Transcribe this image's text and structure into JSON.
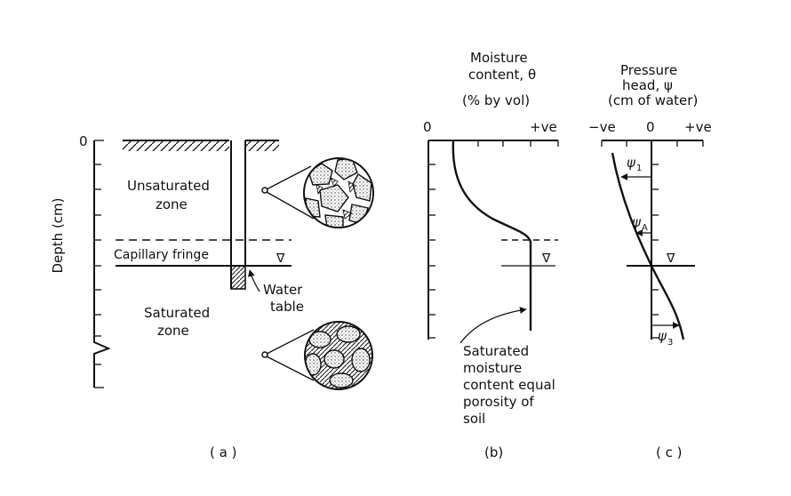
{
  "panel_a": {
    "depth_label": "Depth (cm)",
    "zero_label": "0",
    "unsaturated_line1": "Unsaturated",
    "unsaturated_line2": "zone",
    "capillary_label": "Capillary fringe",
    "saturated_line1": "Saturated",
    "saturated_line2": "zone",
    "water_line1": "Water",
    "water_line2": "table",
    "caption": "( a )"
  },
  "panel_b": {
    "title_line1": "Moisture",
    "title_line2": "content, θ",
    "title_line3": "(% by vol)",
    "x_min": "0",
    "x_max": "+ve",
    "note_line1": "Saturated",
    "note_line2": "moisture",
    "note_line3": "content equal",
    "note_line4": "porosity of",
    "note_line5": "soil",
    "caption": "(b)"
  },
  "panel_c": {
    "title_line1": "Pressure",
    "title_line2": "head, ψ",
    "title_line3": "(cm of water)",
    "x_min": "−ve",
    "x_mid": "0",
    "x_max": "+ve",
    "psi": "ψ",
    "sub_1": "1",
    "sub_a": "A",
    "sub_3": "3",
    "caption": "( c )"
  },
  "symbols": {
    "water_table": "∇"
  }
}
